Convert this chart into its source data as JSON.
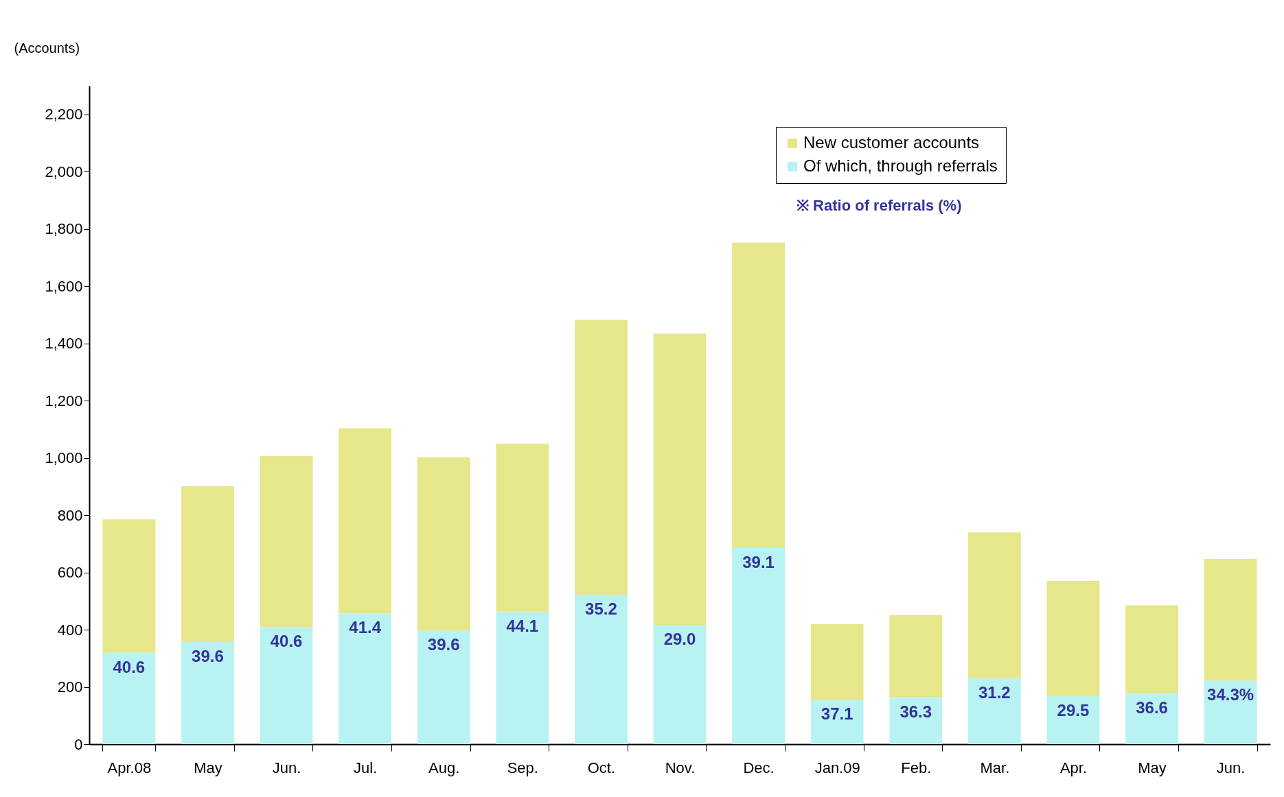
{
  "chart_data": {
    "type": "bar",
    "stacked": true,
    "ylabel": "(Accounts)",
    "categories": [
      "Apr.08",
      "May",
      "Jun.",
      "Jul.",
      "Aug.",
      "Sep.",
      "Oct.",
      "Nov.",
      "Dec.",
      "Jan.09",
      "Feb.",
      "Mar.",
      "Apr.",
      "May",
      "Jun."
    ],
    "series": [
      {
        "name": "Of which, through referrals",
        "color": "#b8f2f2",
        "values": [
          319,
          357,
          409,
          457,
          397,
          463,
          522,
          416,
          685,
          155,
          164,
          231,
          168,
          178,
          222
        ]
      },
      {
        "name": "New customer accounts",
        "color": "#e6e68a",
        "values": [
          466,
          544,
          598,
          646,
          605,
          587,
          960,
          1018,
          1067,
          264,
          287,
          509,
          402,
          307,
          425
        ]
      }
    ],
    "ylim": [
      0,
      2300
    ],
    "yticks": [
      0,
      200,
      400,
      600,
      800,
      {
        "value": 1000,
        "label": "1,000"
      },
      {
        "value": 1200,
        "label": "1,200"
      },
      {
        "value": 1400,
        "label": "1,400"
      },
      {
        "value": 1600,
        "label": "1,600"
      },
      {
        "value": 1800,
        "label": "1,800"
      },
      {
        "value": 2000,
        "label": "2,000"
      },
      {
        "value": 2200,
        "label": "2,200"
      }
    ],
    "annotations": [
      "※ Ratio of referrals (%)",
      {
        "text": "40.6",
        "x": "Apr.08",
        "y": 319
      },
      {
        "text": "39.6",
        "x": "May",
        "y": 357
      },
      {
        "text": "40.6",
        "x": "Jun.",
        "y": 409
      },
      {
        "text": "41.4",
        "x": "Jul.",
        "y": 457
      },
      {
        "text": "39.6",
        "x": "Aug.",
        "y": 397
      },
      {
        "text": "44.1",
        "x": "Sep.",
        "y": 463
      },
      {
        "text": "35.2",
        "x": "Oct.",
        "y": 522
      },
      {
        "text": "29.0",
        "x": "Nov.",
        "y": 416
      },
      {
        "text": "39.1",
        "x": "Dec.",
        "y": 685
      },
      {
        "text": "37.1",
        "x": "Jan.09",
        "y": 155
      },
      {
        "text": "36.3",
        "x": "Feb.",
        "y": 164
      },
      {
        "text": "31.2",
        "x": "Mar.",
        "y": 231
      },
      {
        "text": "29.5",
        "x": "Apr.",
        "y": 168
      },
      {
        "text": "36.6",
        "y": 178
      },
      {
        "text": "34.3%",
        "y": 222
      }
    ],
    "legend": "top right",
    "grid": false
  }
}
